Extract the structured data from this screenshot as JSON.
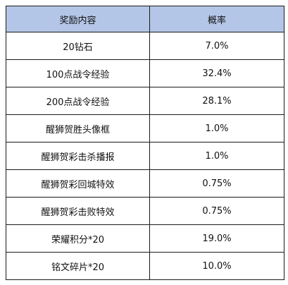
{
  "table": {
    "headers": [
      "奖励内容",
      "概率"
    ],
    "rows": [
      {
        "item": "20钻石",
        "probability": "7.0%"
      },
      {
        "item": "100点战令经验",
        "probability": "32.4%"
      },
      {
        "item": "200点战令经验",
        "probability": "28.1%"
      },
      {
        "item": "醒狮贺胜头像框",
        "probability": "1.0%"
      },
      {
        "item": "醒狮贺彩击杀播报",
        "probability": "1.0%"
      },
      {
        "item": "醒狮贺彩回城特效",
        "probability": "0.75%"
      },
      {
        "item": "醒狮贺彩击败特效",
        "probability": "0.75%"
      },
      {
        "item": "荣耀积分*20",
        "probability": "19.0%"
      },
      {
        "item": "铭文碎片*20",
        "probability": "10.0%"
      }
    ]
  },
  "colors": {
    "header_background": "#b4c6e7",
    "border": "#1a1a1a",
    "text": "#111111"
  }
}
